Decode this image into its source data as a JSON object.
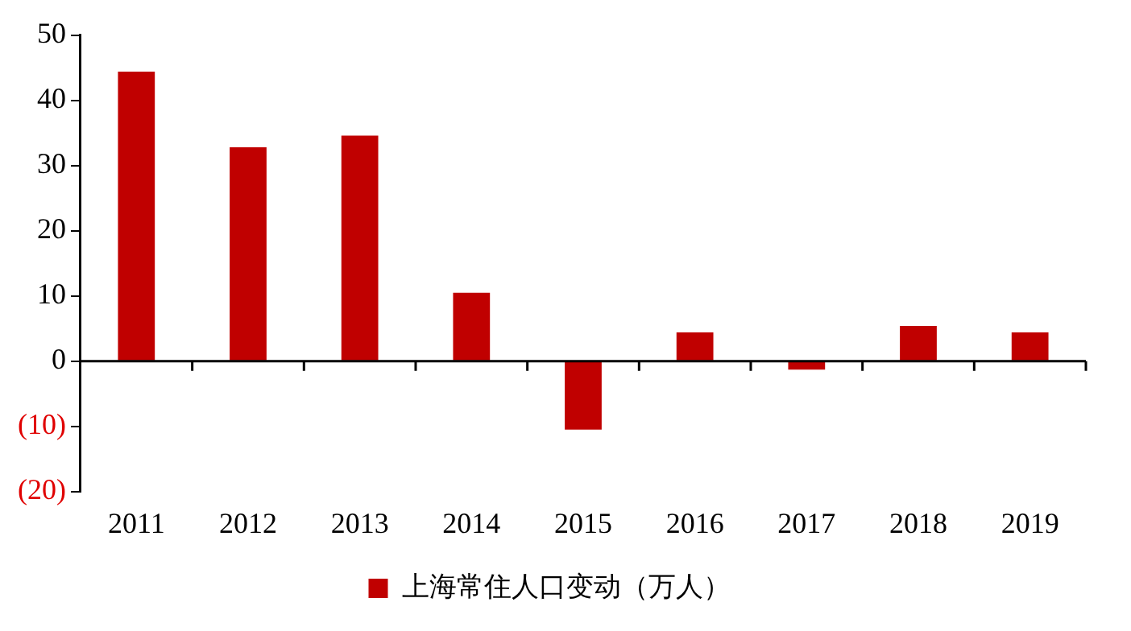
{
  "chart_data": {
    "type": "bar",
    "categories": [
      "2011",
      "2012",
      "2013",
      "2014",
      "2015",
      "2016",
      "2017",
      "2018",
      "2019"
    ],
    "series": [
      {
        "name": "上海常住人口变动（万人）",
        "color": "#c00000",
        "values": [
          44.4,
          32.8,
          34.6,
          10.5,
          -10.5,
          4.4,
          -1.3,
          5.4,
          4.4
        ]
      }
    ],
    "ylim": [
      -20,
      50
    ],
    "yticks": [
      {
        "value": -20,
        "label": "(20)"
      },
      {
        "value": -10,
        "label": "(10)"
      },
      0,
      10,
      20,
      30,
      40,
      50
    ],
    "legend": "bottom"
  }
}
